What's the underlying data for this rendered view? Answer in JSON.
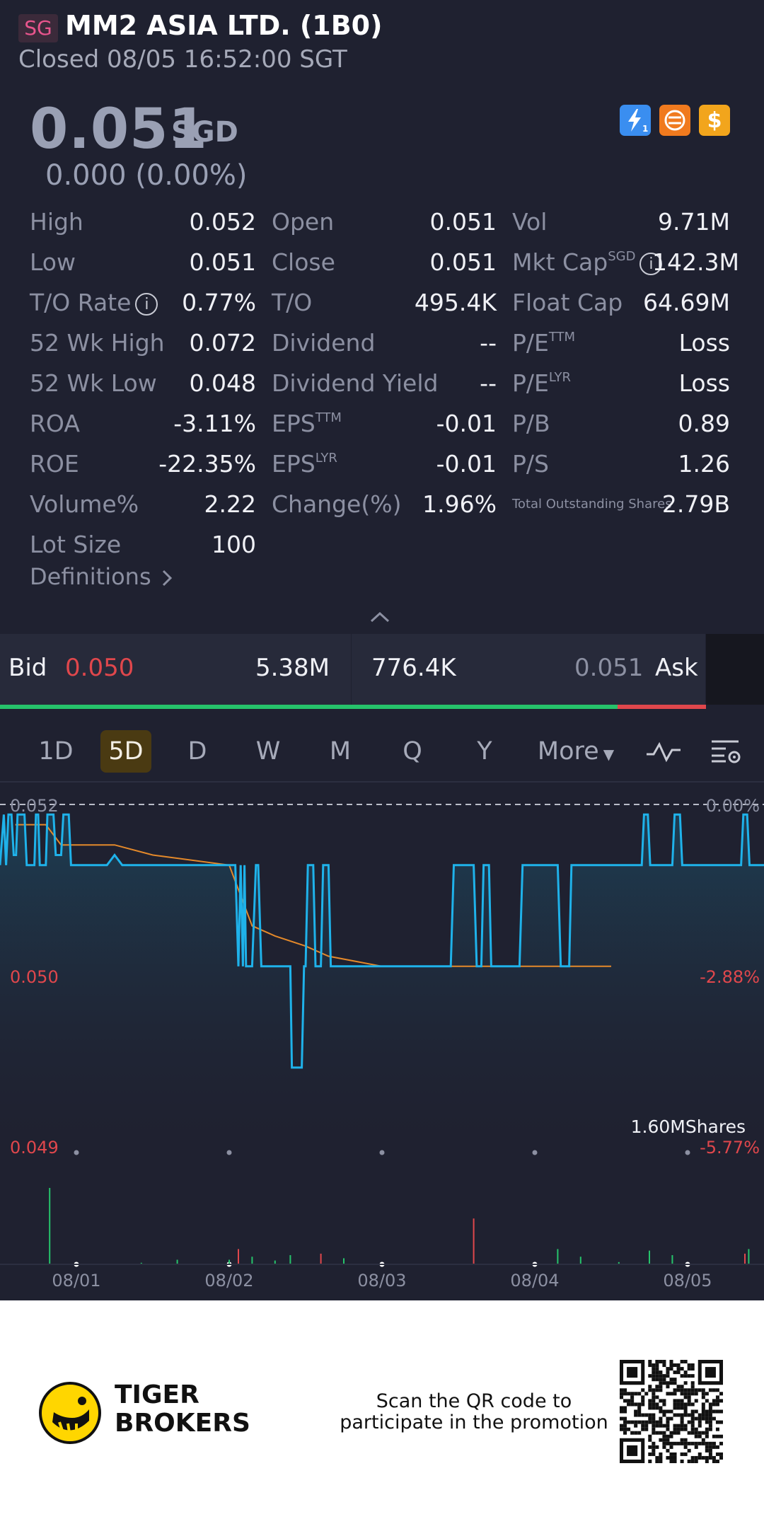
{
  "header": {
    "market": "SG",
    "title": "MM2 ASIA LTD. (1B0)",
    "status": "Closed 08/05 16:52:00 SGT"
  },
  "quote": {
    "price": "0.051",
    "currency": "SGD",
    "change": "0.000 (0.00%)"
  },
  "badges": [
    {
      "icon": "lightning-icon",
      "text": "⚡1",
      "color": "#3a8ef0"
    },
    {
      "icon": "trade-icon",
      "text": "⇄",
      "color": "#f07a1e"
    },
    {
      "icon": "dollar-icon",
      "text": "$",
      "color": "#f2a51c"
    }
  ],
  "stats": {
    "col1": [
      {
        "label": "High",
        "value": "0.052"
      },
      {
        "label": "Low",
        "value": "0.051"
      },
      {
        "label": "T/O Rate",
        "value": "0.77%"
      },
      {
        "label": "52 Wk High",
        "value": "0.072"
      },
      {
        "label": "52 Wk Low",
        "value": "0.048"
      },
      {
        "label": "ROA",
        "value": "-3.11%"
      },
      {
        "label": "ROE",
        "value": "-22.35%"
      },
      {
        "label": "Volume%",
        "value": "2.22"
      },
      {
        "label": "Lot Size",
        "value": "100"
      }
    ],
    "col2": [
      {
        "label": "Open",
        "value": "0.051"
      },
      {
        "label": "Close",
        "value": "0.051"
      },
      {
        "label": "T/O",
        "value": "495.4K"
      },
      {
        "label": "Dividend",
        "value": "--"
      },
      {
        "label": "Dividend Yield",
        "value": "--"
      },
      {
        "label": "EPS",
        "sup": "TTM",
        "value": "-0.01"
      },
      {
        "label": "EPS",
        "sup": "LYR",
        "value": "-0.01"
      },
      {
        "label": "Change(%)",
        "value": "1.96%"
      }
    ],
    "col3": [
      {
        "label": "Vol",
        "value": "9.71M"
      },
      {
        "label": "Mkt Cap",
        "sup": "SGD",
        "value": "142.3M"
      },
      {
        "label": "Float Cap",
        "value": "64.69M"
      },
      {
        "label": "P/E",
        "sup": "TTM",
        "value": "Loss"
      },
      {
        "label": "P/E",
        "sup": "LYR",
        "value": "Loss"
      },
      {
        "label": "P/B",
        "value": "0.89"
      },
      {
        "label": "P/S",
        "value": "1.26"
      },
      {
        "label": "Total Outstanding Shares",
        "value": "2.79B"
      }
    ],
    "definitions": "Definitions"
  },
  "orderbook": {
    "bid_label": "Bid",
    "bid_price": "0.050",
    "bid_size": "5.38M",
    "ask_size": "776.4K",
    "ask_price": "0.051",
    "ask_label": "Ask",
    "bid_share": 0.875
  },
  "periods": [
    "1D",
    "5D",
    "D",
    "W",
    "M",
    "Q",
    "Y",
    "More"
  ],
  "active_period": "5D",
  "colors": {
    "up": "#26c36b",
    "down": "#e0474c",
    "price_line": "#1fb2ea",
    "avg_line": "#e4892a",
    "background": "#1f2130"
  },
  "chart_data": {
    "type": "line",
    "y_labels_left": [
      "0.052",
      "0.050",
      "0.049"
    ],
    "y_labels_right": [
      "0.00%",
      "-2.88%",
      "-5.77%"
    ],
    "x": [
      "08/01",
      "08/02",
      "08/03",
      "08/04",
      "08/05"
    ],
    "volume_label": "1.60MShares",
    "ylim": [
      0.0488,
      0.0521
    ],
    "series": [
      {
        "points": [
          [
            0.0,
            0.0515
          ],
          [
            0.005,
            0.052
          ],
          [
            0.008,
            0.0515
          ],
          [
            0.011,
            0.052
          ],
          [
            0.015,
            0.052
          ],
          [
            0.018,
            0.0516
          ],
          [
            0.021,
            0.0516
          ],
          [
            0.023,
            0.052
          ],
          [
            0.032,
            0.052
          ],
          [
            0.035,
            0.0515
          ],
          [
            0.045,
            0.0515
          ],
          [
            0.047,
            0.052
          ],
          [
            0.05,
            0.052
          ],
          [
            0.052,
            0.0515
          ],
          [
            0.06,
            0.0515
          ],
          [
            0.062,
            0.052
          ],
          [
            0.07,
            0.052
          ],
          [
            0.073,
            0.0516
          ],
          [
            0.08,
            0.0516
          ],
          [
            0.083,
            0.052
          ],
          [
            0.09,
            0.052
          ],
          [
            0.093,
            0.0515
          ],
          [
            0.14,
            0.0515
          ],
          [
            0.15,
            0.0516
          ],
          [
            0.16,
            0.0515
          ],
          [
            0.19,
            0.0515
          ],
          [
            0.2,
            0.0515
          ],
          [
            0.21,
            0.0515
          ],
          [
            0.225,
            0.0515
          ],
          [
            0.24,
            0.0515
          ],
          [
            0.26,
            0.0515
          ],
          [
            0.28,
            0.0515
          ],
          [
            0.3,
            0.0515
          ],
          [
            0.308,
            0.0515
          ],
          [
            0.312,
            0.0505
          ],
          [
            0.315,
            0.0515
          ],
          [
            0.318,
            0.0505
          ],
          [
            0.32,
            0.0515
          ],
          [
            0.322,
            0.0505
          ],
          [
            0.33,
            0.0505
          ],
          [
            0.335,
            0.0515
          ],
          [
            0.338,
            0.0515
          ],
          [
            0.342,
            0.0505
          ],
          [
            0.38,
            0.0505
          ],
          [
            0.382,
            0.0495
          ],
          [
            0.395,
            0.0495
          ],
          [
            0.398,
            0.0505
          ],
          [
            0.4,
            0.0505
          ],
          [
            0.403,
            0.0515
          ],
          [
            0.41,
            0.0515
          ],
          [
            0.413,
            0.0505
          ],
          [
            0.42,
            0.0505
          ],
          [
            0.423,
            0.0515
          ],
          [
            0.43,
            0.0515
          ],
          [
            0.433,
            0.0505
          ],
          [
            0.59,
            0.0505
          ],
          [
            0.594,
            0.0515
          ],
          [
            0.62,
            0.0515
          ],
          [
            0.624,
            0.0505
          ],
          [
            0.63,
            0.0505
          ],
          [
            0.633,
            0.0515
          ],
          [
            0.64,
            0.0515
          ],
          [
            0.643,
            0.0505
          ],
          [
            0.68,
            0.0505
          ],
          [
            0.684,
            0.0515
          ],
          [
            0.73,
            0.0515
          ],
          [
            0.734,
            0.0505
          ],
          [
            0.745,
            0.0505
          ],
          [
            0.748,
            0.0515
          ],
          [
            0.8,
            0.0515
          ],
          [
            0.84,
            0.0515
          ],
          [
            0.843,
            0.052
          ],
          [
            0.848,
            0.052
          ],
          [
            0.851,
            0.0515
          ],
          [
            0.88,
            0.0515
          ],
          [
            0.883,
            0.052
          ],
          [
            0.89,
            0.052
          ],
          [
            0.893,
            0.0515
          ],
          [
            0.97,
            0.0515
          ],
          [
            0.973,
            0.052
          ],
          [
            0.978,
            0.052
          ],
          [
            0.981,
            0.0515
          ],
          [
            1.0,
            0.0515
          ]
        ]
      },
      {
        "points": [
          [
            0.02,
            0.0519
          ],
          [
            0.06,
            0.0519
          ],
          [
            0.08,
            0.0517
          ],
          [
            0.1,
            0.0517
          ],
          [
            0.15,
            0.0517
          ],
          [
            0.2,
            0.0516
          ],
          [
            0.3,
            0.0515
          ],
          [
            0.31,
            0.0513
          ],
          [
            0.33,
            0.0509
          ],
          [
            0.36,
            0.0508
          ],
          [
            0.4,
            0.0507
          ],
          [
            0.43,
            0.0506
          ],
          [
            0.5,
            0.0505
          ],
          [
            0.6,
            0.0505
          ],
          [
            0.7,
            0.0505
          ],
          [
            0.8,
            0.0505
          ]
        ]
      }
    ],
    "volume": [
      {
        "x": 0.065,
        "v": 1.0,
        "c": "up"
      },
      {
        "x": 0.185,
        "v": 0.02,
        "c": "up"
      },
      {
        "x": 0.232,
        "v": 0.06,
        "c": "up"
      },
      {
        "x": 0.3,
        "v": 0.06,
        "c": "up"
      },
      {
        "x": 0.312,
        "v": 0.2,
        "c": "down"
      },
      {
        "x": 0.33,
        "v": 0.1,
        "c": "up"
      },
      {
        "x": 0.36,
        "v": 0.05,
        "c": "up"
      },
      {
        "x": 0.38,
        "v": 0.12,
        "c": "up"
      },
      {
        "x": 0.42,
        "v": 0.14,
        "c": "down"
      },
      {
        "x": 0.45,
        "v": 0.08,
        "c": "up"
      },
      {
        "x": 0.62,
        "v": 0.6,
        "c": "down"
      },
      {
        "x": 0.73,
        "v": 0.2,
        "c": "up"
      },
      {
        "x": 0.76,
        "v": 0.1,
        "c": "up"
      },
      {
        "x": 0.81,
        "v": 0.03,
        "c": "up"
      },
      {
        "x": 0.85,
        "v": 0.18,
        "c": "up"
      },
      {
        "x": 0.88,
        "v": 0.12,
        "c": "up"
      },
      {
        "x": 0.975,
        "v": 0.14,
        "c": "down"
      },
      {
        "x": 0.98,
        "v": 0.2,
        "c": "up"
      }
    ]
  },
  "promo": {
    "brand_line1": "TIGER",
    "brand_line2": "BROKERS",
    "scan_line1": "Scan the QR code to",
    "scan_line2": "participate in the promotion"
  }
}
